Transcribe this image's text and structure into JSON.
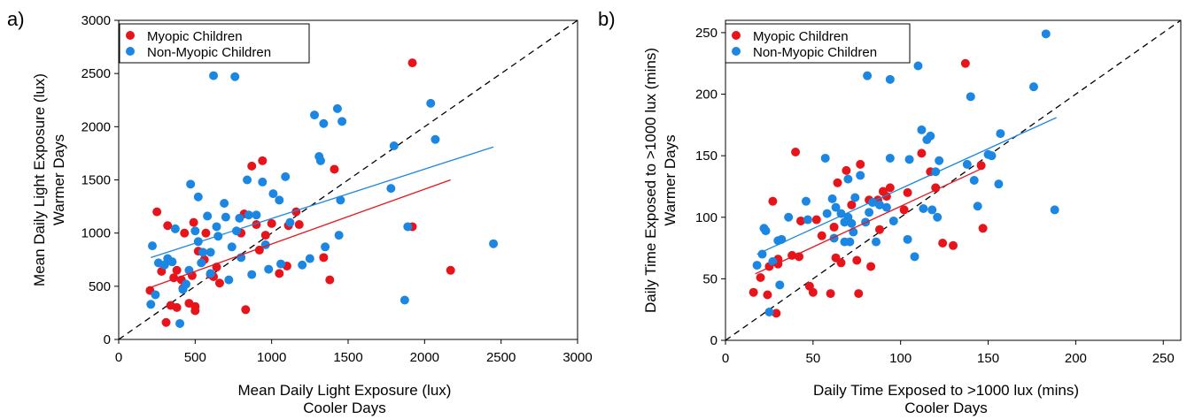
{
  "chart_data": [
    {
      "type": "scatter",
      "panel_label": "a)",
      "xlabel": "Mean Daily Light Exposure (lux)",
      "xlabel2": "Cooler Days",
      "ylabel": "Mean Daily Light Exposure (lux)",
      "ylabel2": "Warmer Days",
      "xlim": [
        0,
        3000
      ],
      "ylim": [
        0,
        3000
      ],
      "xticks": [
        0,
        500,
        1000,
        1500,
        2000,
        2500,
        3000
      ],
      "yticks": [
        0,
        500,
        1000,
        1500,
        2000,
        2500,
        3000
      ],
      "legend_position": "top-left",
      "grid": false,
      "identity_line": true,
      "series": [
        {
          "name": "Myopic Children",
          "color": "#e8141b",
          "trend": [
            [
              210,
              490
            ],
            [
              2170,
              1500
            ]
          ],
          "points": [
            [
              205,
              460
            ],
            [
              250,
              1200
            ],
            [
              280,
              640
            ],
            [
              310,
              160
            ],
            [
              320,
              1070
            ],
            [
              340,
              320
            ],
            [
              360,
              580
            ],
            [
              380,
              300
            ],
            [
              380,
              650
            ],
            [
              410,
              560
            ],
            [
              420,
              480
            ],
            [
              430,
              1000
            ],
            [
              460,
              340
            ],
            [
              480,
              600
            ],
            [
              490,
              1100
            ],
            [
              500,
              310
            ],
            [
              500,
              270
            ],
            [
              520,
              830
            ],
            [
              560,
              750
            ],
            [
              570,
              1000
            ],
            [
              600,
              610
            ],
            [
              620,
              590
            ],
            [
              640,
              680
            ],
            [
              660,
              530
            ],
            [
              800,
              1000
            ],
            [
              820,
              1180
            ],
            [
              830,
              280
            ],
            [
              870,
              1630
            ],
            [
              900,
              1080
            ],
            [
              920,
              840
            ],
            [
              940,
              1680
            ],
            [
              960,
              980
            ],
            [
              1000,
              1090
            ],
            [
              1050,
              620
            ],
            [
              1100,
              690
            ],
            [
              1110,
              1070
            ],
            [
              1160,
              1200
            ],
            [
              1180,
              1080
            ],
            [
              1340,
              770
            ],
            [
              1380,
              560
            ],
            [
              1410,
              1600
            ],
            [
              1920,
              2600
            ],
            [
              1920,
              1060
            ],
            [
              2170,
              650
            ]
          ]
        },
        {
          "name": "Non-Myopic Children",
          "color": "#1b87e3",
          "trend": [
            [
              210,
              770
            ],
            [
              2450,
              1810
            ]
          ],
          "points": [
            [
              210,
              330
            ],
            [
              220,
              880
            ],
            [
              240,
              420
            ],
            [
              260,
              720
            ],
            [
              300,
              700
            ],
            [
              320,
              760
            ],
            [
              350,
              730
            ],
            [
              370,
              1040
            ],
            [
              400,
              150
            ],
            [
              420,
              470
            ],
            [
              440,
              520
            ],
            [
              460,
              650
            ],
            [
              470,
              1460
            ],
            [
              500,
              1020
            ],
            [
              520,
              1340
            ],
            [
              520,
              920
            ],
            [
              540,
              720
            ],
            [
              550,
              820
            ],
            [
              580,
              1160
            ],
            [
              600,
              620
            ],
            [
              600,
              820
            ],
            [
              620,
              2480
            ],
            [
              640,
              1060
            ],
            [
              650,
              970
            ],
            [
              690,
              1280
            ],
            [
              700,
              1150
            ],
            [
              720,
              560
            ],
            [
              740,
              870
            ],
            [
              760,
              2470
            ],
            [
              770,
              1020
            ],
            [
              790,
              1140
            ],
            [
              800,
              770
            ],
            [
              840,
              1500
            ],
            [
              850,
              1170
            ],
            [
              870,
              610
            ],
            [
              900,
              1170
            ],
            [
              940,
              1480
            ],
            [
              960,
              890
            ],
            [
              980,
              660
            ],
            [
              1010,
              1370
            ],
            [
              1050,
              1310
            ],
            [
              1060,
              710
            ],
            [
              1090,
              1530
            ],
            [
              1120,
              1100
            ],
            [
              1200,
              700
            ],
            [
              1250,
              760
            ],
            [
              1280,
              2110
            ],
            [
              1310,
              1720
            ],
            [
              1320,
              1680
            ],
            [
              1340,
              2030
            ],
            [
              1350,
              870
            ],
            [
              1430,
              2170
            ],
            [
              1440,
              980
            ],
            [
              1450,
              1310
            ],
            [
              1460,
              2050
            ],
            [
              1780,
              1420
            ],
            [
              1800,
              1820
            ],
            [
              1870,
              370
            ],
            [
              1890,
              1060
            ],
            [
              2040,
              2220
            ],
            [
              2070,
              1880
            ],
            [
              2450,
              900
            ]
          ]
        }
      ]
    },
    {
      "type": "scatter",
      "panel_label": "b)",
      "xlabel": "Daily Time Exposed to >1000 lux (mins)",
      "xlabel2": "Cooler Days",
      "ylabel": "Daily Time Exposed to >1000 lux (mins)",
      "ylabel2": "Warmer Days",
      "xlim": [
        0,
        260
      ],
      "ylim": [
        0,
        260
      ],
      "xticks": [
        0,
        50,
        100,
        150,
        200,
        250
      ],
      "yticks": [
        0,
        50,
        100,
        150,
        200,
        250
      ],
      "legend_position": "top-left",
      "grid": false,
      "identity_line": true,
      "series": [
        {
          "name": "Myopic Children",
          "color": "#e8141b",
          "trend": [
            [
              17,
              54
            ],
            [
              147,
              140
            ]
          ],
          "points": [
            [
              16,
              39
            ],
            [
              20,
              51
            ],
            [
              24,
              37
            ],
            [
              25,
              60
            ],
            [
              27,
              113
            ],
            [
              29,
              22
            ],
            [
              30,
              62
            ],
            [
              30,
              66
            ],
            [
              38,
              69
            ],
            [
              40,
              153
            ],
            [
              42,
              68
            ],
            [
              43,
              97
            ],
            [
              48,
              44
            ],
            [
              50,
              39
            ],
            [
              52,
              98
            ],
            [
              55,
              85
            ],
            [
              60,
              38
            ],
            [
              62,
              92
            ],
            [
              63,
              67
            ],
            [
              64,
              128
            ],
            [
              66,
              63
            ],
            [
              69,
              138
            ],
            [
              72,
              110
            ],
            [
              75,
              65
            ],
            [
              76,
              38
            ],
            [
              77,
              143
            ],
            [
              82,
              114
            ],
            [
              83,
              60
            ],
            [
              87,
              114
            ],
            [
              88,
              90
            ],
            [
              90,
              121
            ],
            [
              92,
              117
            ],
            [
              94,
              124
            ],
            [
              102,
              106
            ],
            [
              104,
              120
            ],
            [
              112,
              152
            ],
            [
              117,
              137
            ],
            [
              120,
              124
            ],
            [
              124,
              79
            ],
            [
              130,
              77
            ],
            [
              137,
              225
            ],
            [
              146,
              142
            ],
            [
              147,
              91
            ]
          ]
        },
        {
          "name": "Non-Myopic Children",
          "color": "#1b87e3",
          "trend": [
            [
              18,
              70
            ],
            [
              189,
              181
            ]
          ],
          "points": [
            [
              18,
              61
            ],
            [
              21,
              70
            ],
            [
              22,
              91
            ],
            [
              23,
              89
            ],
            [
              25,
              23
            ],
            [
              27,
              64
            ],
            [
              30,
              81
            ],
            [
              31,
              45
            ],
            [
              32,
              82
            ],
            [
              36,
              100
            ],
            [
              46,
              113
            ],
            [
              47,
              98
            ],
            [
              57,
              148
            ],
            [
              58,
              103
            ],
            [
              61,
              115
            ],
            [
              62,
              83
            ],
            [
              63,
              108
            ],
            [
              66,
              103
            ],
            [
              68,
              80
            ],
            [
              68,
              96
            ],
            [
              70,
              131
            ],
            [
              70,
              100
            ],
            [
              71,
              80
            ],
            [
              72,
              95
            ],
            [
              73,
              88
            ],
            [
              74,
              116
            ],
            [
              77,
              134
            ],
            [
              80,
              96
            ],
            [
              81,
              215
            ],
            [
              82,
              104
            ],
            [
              84,
              112
            ],
            [
              86,
              80
            ],
            [
              88,
              110
            ],
            [
              92,
              108
            ],
            [
              94,
              212
            ],
            [
              94,
              148
            ],
            [
              96,
              97
            ],
            [
              104,
              82
            ],
            [
              105,
              147
            ],
            [
              108,
              68
            ],
            [
              110,
              223
            ],
            [
              112,
              171
            ],
            [
              113,
              107
            ],
            [
              115,
              163
            ],
            [
              117,
              166
            ],
            [
              118,
              106
            ],
            [
              120,
              137
            ],
            [
              121,
              100
            ],
            [
              122,
              146
            ],
            [
              138,
              143
            ],
            [
              140,
              198
            ],
            [
              142,
              130
            ],
            [
              144,
              109
            ],
            [
              150,
              151
            ],
            [
              152,
              150
            ],
            [
              156,
              127
            ],
            [
              157,
              168
            ],
            [
              176,
              206
            ],
            [
              183,
              249
            ],
            [
              188,
              106
            ]
          ]
        }
      ]
    }
  ]
}
